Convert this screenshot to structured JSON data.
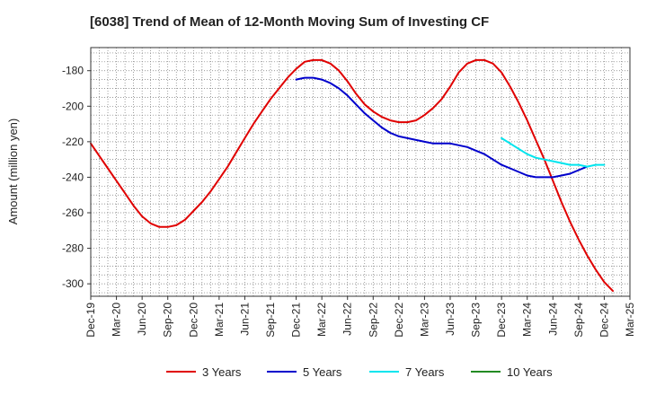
{
  "chart_data": {
    "type": "line",
    "title": "[6038]  Trend of Mean of 12-Month Moving Sum of Investing CF",
    "xlabel": "",
    "ylabel": "Amount (million yen)",
    "ylim": [
      -307,
      -167
    ],
    "yticks": [
      -180,
      -200,
      -220,
      -240,
      -260,
      -280,
      -300
    ],
    "xticks": [
      "Dec-19",
      "Mar-20",
      "Jun-20",
      "Sep-20",
      "Dec-20",
      "Mar-21",
      "Jun-21",
      "Sep-21",
      "Dec-21",
      "Mar-22",
      "Jun-22",
      "Sep-22",
      "Dec-22",
      "Mar-23",
      "Jun-23",
      "Sep-23",
      "Dec-23",
      "Mar-24",
      "Jun-24",
      "Sep-24",
      "Dec-24",
      "Mar-25"
    ],
    "grid": true,
    "legend_position": "bottom",
    "series": [
      {
        "name": "3 Years",
        "color": "#e00000",
        "start_index": 0,
        "values": [
          -221,
          -228,
          -235,
          -242,
          -249,
          -256,
          -262,
          -266,
          -268,
          -268,
          -267,
          -264,
          -259,
          -254,
          -248,
          -241,
          -234,
          -226,
          -218,
          -210,
          -203,
          -196,
          -190,
          -184,
          -179,
          -175,
          -174,
          -174,
          -176,
          -180,
          -186,
          -193,
          -199,
          -203,
          -206,
          -208,
          -209,
          -209,
          -208,
          -205,
          -201,
          -196,
          -189,
          -181,
          -176,
          -174,
          -174,
          -176,
          -181,
          -189,
          -198,
          -208,
          -219,
          -230,
          -242,
          -254,
          -265,
          -275,
          -284,
          -292,
          -299,
          -304
        ]
      },
      {
        "name": "5 Years",
        "color": "#0000cc",
        "start_index": 24,
        "values": [
          -185,
          -184,
          -184,
          -185,
          -187,
          -190,
          -194,
          -199,
          -204,
          -208,
          -212,
          -215,
          -217,
          -218,
          -219,
          -220,
          -221,
          -221,
          -221,
          -222,
          -223,
          -225,
          -227,
          -230,
          -233,
          -235,
          -237,
          -239,
          -240,
          -240,
          -240,
          -239,
          -238,
          -236,
          -234
        ]
      },
      {
        "name": "7 Years",
        "color": "#00e5ee",
        "start_index": 48,
        "values": [
          -218,
          -221,
          -224,
          -227,
          -229,
          -230,
          -231,
          -232,
          -233,
          -233,
          -234,
          -233,
          -233
        ]
      },
      {
        "name": "10 Years",
        "color": "#228b22",
        "start_index": 0,
        "values": []
      }
    ]
  }
}
